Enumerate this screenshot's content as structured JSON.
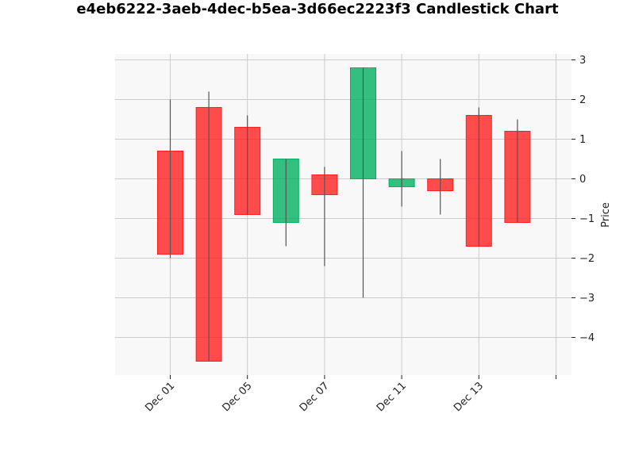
{
  "chart_data": {
    "type": "candlestick",
    "title": "e4eb6222-3aeb-4dec-b5ea-3d66ec2223f3 Candlestick Chart",
    "ylabel": "Price",
    "xlabel": "",
    "y_axis_side": "right",
    "grid": true,
    "ylim": [
      -4.95,
      3.15
    ],
    "yticks": [
      3,
      2,
      1,
      0,
      -1,
      -2,
      -3,
      -4
    ],
    "ytick_labels": [
      "3",
      "2",
      "1",
      "0",
      "−1",
      "−2",
      "−3",
      "−4"
    ],
    "xticks": [
      {
        "slot": 0,
        "label": "Dec 01"
      },
      {
        "slot": 2,
        "label": "Dec 05"
      },
      {
        "slot": 4,
        "label": "Dec 07"
      },
      {
        "slot": 6,
        "label": "Dec 11"
      },
      {
        "slot": 8,
        "label": "Dec 13"
      },
      {
        "slot": 10,
        "label": ""
      }
    ],
    "colors": {
      "up": "#00b060",
      "down": "#ff2020",
      "wick": "#555555",
      "background": "#f8f8f8",
      "grid": "#cccccc"
    },
    "candles": [
      {
        "open": 0.7,
        "close": -1.9,
        "high": 2.0,
        "low": -2.0
      },
      {
        "open": 1.8,
        "close": -4.6,
        "high": 2.2,
        "low": -4.6
      },
      {
        "open": 1.3,
        "close": -0.9,
        "high": 1.6,
        "low": -0.9
      },
      {
        "open": -1.1,
        "close": 0.5,
        "high": 0.5,
        "low": -1.7
      },
      {
        "open": 0.1,
        "close": -0.4,
        "high": 0.3,
        "low": -2.2
      },
      {
        "open": 0.0,
        "close": 2.8,
        "high": 2.8,
        "low": -3.0
      },
      {
        "open": -0.2,
        "close": 0.0,
        "high": 0.7,
        "low": -0.7
      },
      {
        "open": 0.0,
        "close": -0.3,
        "high": 0.5,
        "low": -0.9
      },
      {
        "open": 1.6,
        "close": -1.7,
        "high": 1.8,
        "low": -1.7
      },
      {
        "open": 1.2,
        "close": -1.1,
        "high": 1.5,
        "low": -1.1
      }
    ]
  }
}
